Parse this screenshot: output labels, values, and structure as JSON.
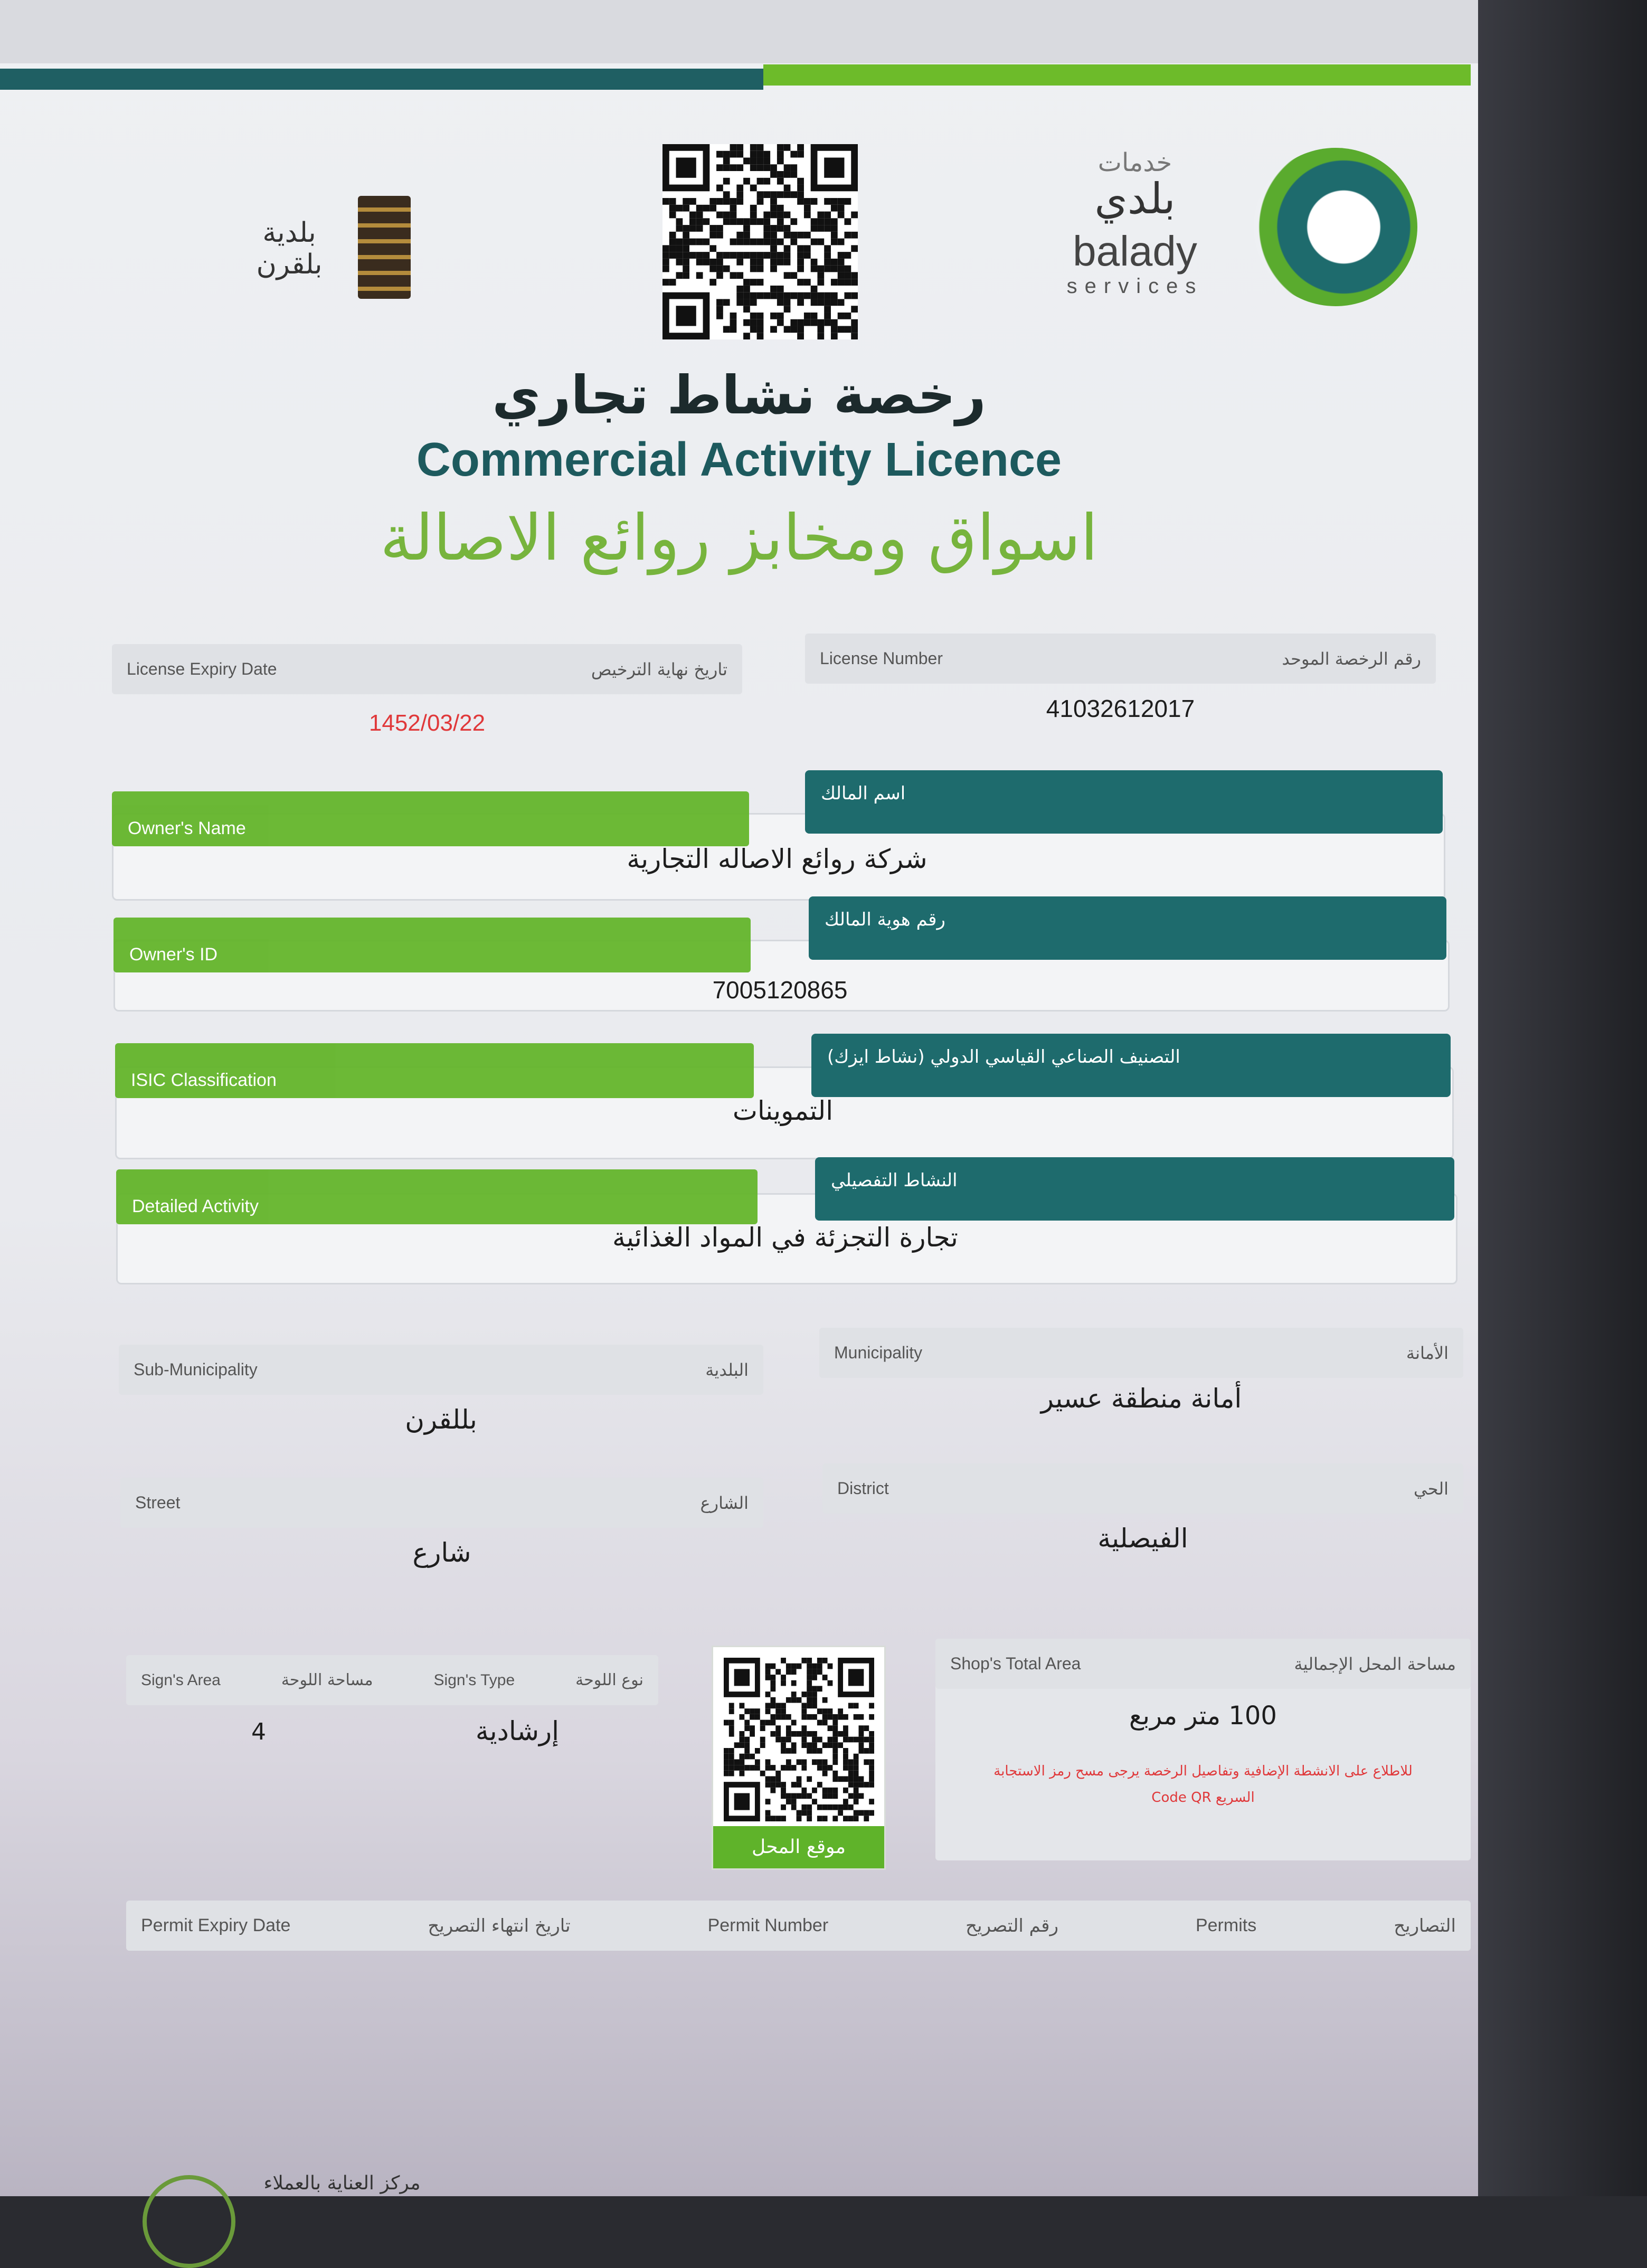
{
  "header": {
    "left_logo_text": "بلدية بلقرن",
    "right_logo": {
      "ar_top": "خدمات",
      "ar_main": "بلدي",
      "en_main": "balady",
      "en_sub": "services"
    },
    "title_ar": "رخصة نشاط تجاري",
    "title_en": "Commercial Activity Licence",
    "shop_name": "اسواق ومخابز روائع الاصالة"
  },
  "colors": {
    "green": "#64b52b",
    "teal": "#1e6b6d",
    "expiry_red": "#e0383a"
  },
  "license": {
    "expiry_label_en": "License Expiry Date",
    "expiry_label_ar": "تاريخ نهاية الترخيص",
    "expiry_value": "1452/03/22",
    "number_label_en": "License Number",
    "number_label_ar": "رقم الرخصة الموحد",
    "number_value": "41032612017"
  },
  "owner_name": {
    "label_en": "Owner's Name",
    "label_ar": "اسم المالك",
    "value": "شركة روائع الاصاله التجارية"
  },
  "owner_id": {
    "label_en": "Owner's ID",
    "label_ar": "رقم هوية المالك",
    "value": "7005120865"
  },
  "isic": {
    "label_en": "ISIC Classification",
    "label_ar": "التصنيف الصناعي القياسي الدولي (نشاط ايزك)",
    "value": "التموينات"
  },
  "detailed_activity": {
    "label_en": "Detailed Activity",
    "label_ar": "النشاط التفصيلي",
    "value": "تجارة التجزئة في المواد الغذائية"
  },
  "sub_municipality": {
    "label_en": "Sub-Municipality",
    "label_ar": "البلدية",
    "value": "بللقرن"
  },
  "municipality": {
    "label_en": "Municipality",
    "label_ar": "الأمانة",
    "value": "أمانة منطقة عسير"
  },
  "street": {
    "label_en": "Street",
    "label_ar": "الشارع",
    "value": "شارع"
  },
  "district": {
    "label_en": "District",
    "label_ar": "الحي",
    "value": "الفيصلية"
  },
  "sign": {
    "area_label_en": "Sign's Area",
    "area_label_ar": "مساحة اللوحة",
    "area_value": "4",
    "type_label_en": "Sign's Type",
    "type_label_ar": "نوع اللوحة",
    "type_value": "إرشادية"
  },
  "shop_location_button": "موقع المحل",
  "shop_area": {
    "label_en": "Shop's Total Area",
    "label_ar": "مساحة المحل الإجمالية",
    "value": "100 متر مربع",
    "note_line1": "للاطلاع على الانشطة الإضافية وتفاصيل الرخصة يرجى مسح رمز الاستجابة",
    "note_line2": "السريع Code QR"
  },
  "permits": {
    "expiry_en": "Permit Expiry Date",
    "expiry_ar": "تاريخ انتهاء التصريح",
    "number_en": "Permit Number",
    "number_ar": "رقم التصريح",
    "permits_en": "Permits",
    "permits_ar": "التصاريح"
  },
  "footer": {
    "text": "مركز العناية بالعملاء"
  }
}
